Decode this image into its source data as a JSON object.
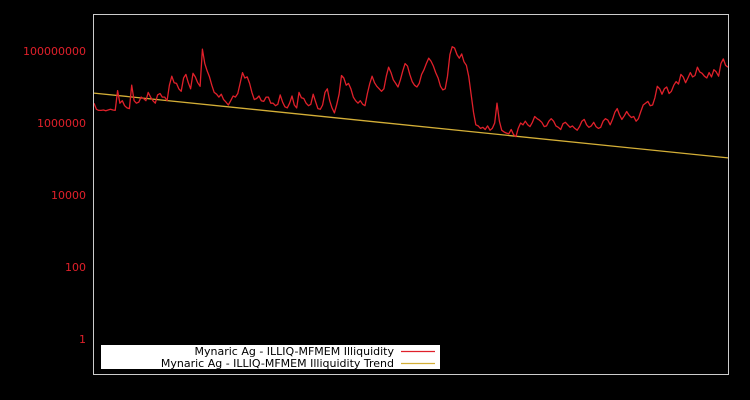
{
  "chart_data": {
    "type": "line",
    "title": "",
    "xlabel": "",
    "ylabel": "",
    "yscale": "log",
    "ylim": [
      0.3,
      20000000000
    ],
    "yticks": [
      {
        "value": 1,
        "label": "1"
      },
      {
        "value": 100,
        "label": "100"
      },
      {
        "value": 10000,
        "label": "10000"
      },
      {
        "value": 1000000,
        "label": "1000000"
      },
      {
        "value": 100000000,
        "label": "100000000"
      }
    ],
    "xticks": [],
    "grid": false,
    "legend_position": "lower left",
    "x_index_range": [
      0,
      100
    ],
    "series": [
      {
        "name": "Mynaric Ag - ILLIQ-MFMEM Illiquidity",
        "color": "#e0202a",
        "log10_values": [
          6.55,
          6.38,
          6.35,
          6.35,
          6.36,
          6.34,
          6.36,
          6.38,
          6.36,
          6.35,
          6.9,
          6.55,
          6.62,
          6.48,
          6.42,
          6.4,
          7.05,
          6.62,
          6.55,
          6.58,
          6.72,
          6.68,
          6.62,
          6.85,
          6.72,
          6.62,
          6.55,
          6.78,
          6.82,
          6.72,
          6.72,
          6.62,
          7.05,
          7.3,
          7.12,
          7.1,
          6.95,
          6.88,
          7.25,
          7.35,
          7.12,
          6.95,
          7.38,
          7.28,
          7.12,
          7.02,
          8.05,
          7.65,
          7.45,
          7.28,
          7.05,
          6.85,
          6.8,
          6.72,
          6.8,
          6.65,
          6.58,
          6.5,
          6.62,
          6.75,
          6.72,
          6.82,
          7.1,
          7.4,
          7.25,
          7.28,
          7.1,
          6.85,
          6.65,
          6.68,
          6.75,
          6.62,
          6.6,
          6.72,
          6.72,
          6.55,
          6.55,
          6.48,
          6.52,
          6.78,
          6.58,
          6.45,
          6.42,
          6.55,
          6.75,
          6.5,
          6.42,
          6.85,
          6.7,
          6.68,
          6.55,
          6.48,
          6.52,
          6.8,
          6.6,
          6.4,
          6.38,
          6.5,
          6.85,
          6.95,
          6.62,
          6.42,
          6.28,
          6.52,
          6.8,
          7.32,
          7.25,
          7.05,
          7.1,
          6.95,
          6.72,
          6.62,
          6.55,
          6.62,
          6.52,
          6.48,
          6.82,
          7.1,
          7.3,
          7.12,
          7.02,
          6.95,
          6.88,
          6.95,
          7.3,
          7.55,
          7.4,
          7.2,
          7.1,
          7.0,
          7.2,
          7.45,
          7.65,
          7.58,
          7.35,
          7.15,
          7.05,
          7.0,
          7.1,
          7.35,
          7.48,
          7.65,
          7.8,
          7.72,
          7.58,
          7.4,
          7.25,
          7.02,
          6.92,
          6.95,
          7.3,
          7.9,
          8.12,
          8.08,
          7.9,
          7.8,
          7.92,
          7.7,
          7.6,
          7.3,
          6.8,
          6.3,
          5.95,
          5.92,
          5.85,
          5.88,
          5.82,
          5.92,
          5.8,
          5.85,
          6.0,
          6.55,
          6.05,
          5.8,
          5.75,
          5.72,
          5.7,
          5.82,
          5.68,
          5.62,
          5.85,
          6.0,
          5.95,
          6.05,
          5.95,
          5.9,
          6.02,
          6.18,
          6.12,
          6.08,
          6.02,
          5.9,
          5.92,
          6.05,
          6.12,
          6.05,
          5.92,
          5.88,
          5.82,
          5.98,
          6.02,
          5.95,
          5.88,
          5.92,
          5.85,
          5.8,
          5.9,
          6.05,
          6.1,
          5.95,
          5.88,
          5.92,
          6.02,
          5.9,
          5.85,
          5.88,
          6.05,
          6.12,
          6.08,
          5.95,
          6.1,
          6.3,
          6.4,
          6.22,
          6.1,
          6.2,
          6.32,
          6.22,
          6.15,
          6.18,
          6.05,
          6.12,
          6.32,
          6.5,
          6.55,
          6.6,
          6.48,
          6.5,
          6.7,
          7.02,
          6.95,
          6.8,
          6.95,
          7.0,
          6.82,
          6.88,
          7.05,
          7.15,
          7.08,
          7.35,
          7.28,
          7.12,
          7.25,
          7.4,
          7.28,
          7.32,
          7.55,
          7.42,
          7.38,
          7.3,
          7.25,
          7.4,
          7.28,
          7.48,
          7.42,
          7.3,
          7.65,
          7.78,
          7.6,
          7.55
        ]
      },
      {
        "name": "Mynaric Ag - ILLIQ-MFMEM Illiquidity Trend",
        "color": "#d4af37",
        "log10_start": 6.83,
        "log10_end": 5.03
      }
    ]
  },
  "legend": {
    "items": [
      {
        "label": "Mynaric Ag - ILLIQ-MFMEM Illiquidity",
        "color": "#e0202a"
      },
      {
        "label": "Mynaric Ag - ILLIQ-MFMEM Illiquidity Trend",
        "color": "#d4af37"
      }
    ]
  },
  "colors": {
    "background": "#000000",
    "axis_frame": "#cccccc",
    "tick_label": "#e0202a",
    "legend_bg": "#ffffff"
  }
}
